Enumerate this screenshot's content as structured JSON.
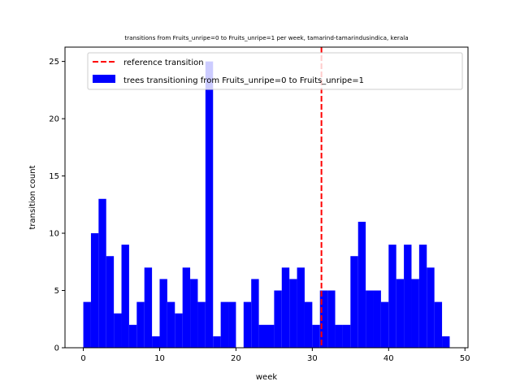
{
  "chart_data": {
    "type": "bar",
    "title": "transitions from Fruits_unripe=0 to Fruits_unripe=1 per week, tamarind-tamarindusindica, kerala",
    "xlabel": "week",
    "ylabel": "transition count",
    "xlim": [
      -2.4,
      50.4
    ],
    "ylim": [
      0,
      26.25
    ],
    "xticks": [
      0,
      10,
      20,
      30,
      40,
      50
    ],
    "yticks": [
      0,
      5,
      10,
      15,
      20,
      25
    ],
    "bin_width": 1,
    "series": [
      {
        "name": "trees transitioning from Fruits_unripe=0 to Fruits_unripe=1",
        "color": "#0000ff",
        "x": [
          0,
          1,
          2,
          3,
          4,
          5,
          6,
          7,
          8,
          9,
          10,
          11,
          12,
          13,
          14,
          15,
          16,
          17,
          18,
          19,
          20,
          21,
          22,
          23,
          24,
          25,
          26,
          27,
          28,
          29,
          30,
          31,
          32,
          33,
          34,
          35,
          36,
          37,
          38,
          39,
          40,
          41,
          42,
          43,
          44,
          45,
          46,
          47
        ],
        "values": [
          4,
          10,
          13,
          8,
          3,
          9,
          2,
          4,
          7,
          1,
          6,
          4,
          3,
          7,
          6,
          4,
          25,
          1,
          4,
          4,
          0,
          4,
          6,
          2,
          2,
          5,
          7,
          6,
          7,
          4,
          2,
          5,
          5,
          2,
          2,
          8,
          11,
          5,
          5,
          4,
          9,
          6,
          9,
          6,
          9,
          7,
          4,
          1
        ]
      }
    ],
    "reference_line": {
      "name": "reference transition",
      "x": 31.2,
      "color": "#ff0000",
      "style": "dashed"
    },
    "legend_position": "top-right",
    "grid": false
  }
}
